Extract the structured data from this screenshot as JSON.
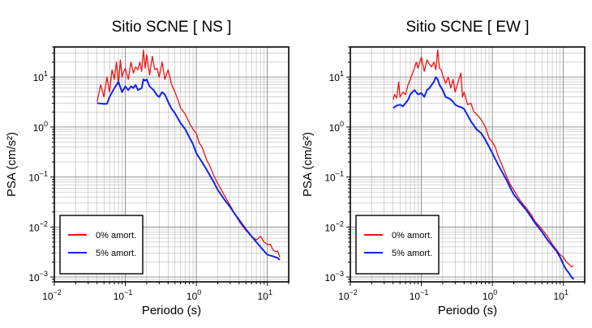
{
  "chart_data": [
    {
      "type": "line",
      "title": "Sitio SCNE [ NS ]",
      "xlabel": "Periodo (s)",
      "ylabel": "PSA (cm/s²)",
      "xscale": "log",
      "yscale": "log",
      "xlim": [
        0.01,
        20
      ],
      "ylim": [
        0.0008,
        40
      ],
      "grid": true,
      "legend_position": "bottom-left",
      "x_ticks": [
        {
          "value": 0.01,
          "base": "10",
          "exp": "−2"
        },
        {
          "value": 0.1,
          "base": "10",
          "exp": "−1"
        },
        {
          "value": 1,
          "base": "10",
          "exp": "0"
        },
        {
          "value": 10,
          "base": "10",
          "exp": "1"
        }
      ],
      "y_ticks": [
        {
          "value": 0.001,
          "base": "10",
          "exp": "−3"
        },
        {
          "value": 0.01,
          "base": "10",
          "exp": "−2"
        },
        {
          "value": 0.1,
          "base": "10",
          "exp": "−1"
        },
        {
          "value": 1,
          "base": "10",
          "exp": "0"
        },
        {
          "value": 10,
          "base": "10",
          "exp": "1"
        }
      ],
      "series": [
        {
          "name": "0% amort.",
          "color": "#ee1111",
          "x": [
            0.04,
            0.045,
            0.05,
            0.055,
            0.06,
            0.065,
            0.07,
            0.075,
            0.08,
            0.085,
            0.09,
            0.095,
            0.1,
            0.11,
            0.12,
            0.13,
            0.14,
            0.15,
            0.16,
            0.17,
            0.18,
            0.19,
            0.2,
            0.22,
            0.24,
            0.26,
            0.28,
            0.3,
            0.33,
            0.36,
            0.4,
            0.45,
            0.5,
            0.55,
            0.6,
            0.7,
            0.8,
            0.9,
            1.0,
            1.1,
            1.2,
            1.4,
            1.6,
            1.8,
            2.0,
            2.5,
            3.0,
            3.5,
            4.0,
            5.0,
            6.0,
            7.0,
            8.0,
            9.0,
            10.0,
            11.0,
            12.0,
            13.0,
            14.0,
            15.0
          ],
          "y": [
            3.2,
            7.0,
            4.0,
            10.0,
            5.0,
            14.0,
            9.0,
            20.0,
            7.0,
            22.0,
            10.0,
            13.0,
            15.0,
            9.0,
            20.0,
            12.0,
            16.0,
            14.0,
            20.0,
            13.0,
            35.0,
            15.0,
            28.0,
            11.0,
            26.0,
            14.0,
            15.0,
            10.0,
            20.0,
            9.0,
            14.0,
            7.0,
            5.0,
            3.5,
            2.4,
            1.8,
            1.2,
            0.9,
            0.75,
            0.48,
            0.4,
            0.22,
            0.15,
            0.1,
            0.075,
            0.042,
            0.027,
            0.018,
            0.013,
            0.0085,
            0.0065,
            0.0055,
            0.0065,
            0.005,
            0.0045,
            0.0045,
            0.0035,
            0.0032,
            0.0033,
            0.0025
          ]
        },
        {
          "name": "5% amort.",
          "color": "#1122ee",
          "x": [
            0.04,
            0.05,
            0.055,
            0.06,
            0.07,
            0.08,
            0.09,
            0.1,
            0.11,
            0.12,
            0.13,
            0.14,
            0.15,
            0.17,
            0.18,
            0.19,
            0.2,
            0.22,
            0.25,
            0.28,
            0.3,
            0.33,
            0.36,
            0.4,
            0.45,
            0.5,
            0.6,
            0.7,
            0.8,
            0.9,
            1.0,
            1.2,
            1.4,
            1.6,
            1.8,
            2.0,
            2.5,
            3.0,
            3.5,
            4.0,
            5.0,
            6.0,
            7.0,
            8.0,
            9.0,
            10.0,
            12.0,
            14.0,
            15.0
          ],
          "y": [
            3.0,
            2.9,
            2.9,
            4.0,
            6.0,
            8.0,
            5.0,
            6.5,
            5.5,
            6.5,
            6.0,
            7.0,
            5.5,
            6.0,
            9.0,
            8.5,
            9.0,
            6.5,
            5.5,
            4.3,
            4.0,
            5.0,
            4.5,
            3.2,
            2.3,
            1.9,
            1.2,
            0.9,
            0.62,
            0.45,
            0.3,
            0.2,
            0.14,
            0.1,
            0.075,
            0.055,
            0.035,
            0.025,
            0.018,
            0.014,
            0.009,
            0.0065,
            0.005,
            0.004,
            0.0033,
            0.0028,
            0.0026,
            0.0024,
            0.0022
          ]
        }
      ]
    },
    {
      "type": "line",
      "title": "Sitio SCNE [ EW ]",
      "xlabel": "Periodo (s)",
      "ylabel": "PSA (cm/s²)",
      "xscale": "log",
      "yscale": "log",
      "xlim": [
        0.01,
        20
      ],
      "ylim": [
        0.0008,
        40
      ],
      "grid": true,
      "legend_position": "bottom-left",
      "x_ticks": [
        {
          "value": 0.01,
          "base": "10",
          "exp": "−2"
        },
        {
          "value": 0.1,
          "base": "10",
          "exp": "−1"
        },
        {
          "value": 1,
          "base": "10",
          "exp": "0"
        },
        {
          "value": 10,
          "base": "10",
          "exp": "1"
        }
      ],
      "y_ticks": [
        {
          "value": 0.001,
          "base": "10",
          "exp": "−3"
        },
        {
          "value": 0.01,
          "base": "10",
          "exp": "−2"
        },
        {
          "value": 0.1,
          "base": "10",
          "exp": "−1"
        },
        {
          "value": 1,
          "base": "10",
          "exp": "0"
        },
        {
          "value": 10,
          "base": "10",
          "exp": "1"
        }
      ],
      "series": [
        {
          "name": "0% amort.",
          "color": "#ee1111",
          "x": [
            0.04,
            0.042,
            0.045,
            0.048,
            0.05,
            0.055,
            0.06,
            0.065,
            0.07,
            0.075,
            0.08,
            0.085,
            0.09,
            0.1,
            0.11,
            0.12,
            0.13,
            0.14,
            0.15,
            0.16,
            0.17,
            0.18,
            0.19,
            0.2,
            0.22,
            0.24,
            0.26,
            0.28,
            0.3,
            0.33,
            0.36,
            0.38,
            0.4,
            0.45,
            0.5,
            0.55,
            0.6,
            0.7,
            0.8,
            0.9,
            1.0,
            1.1,
            1.2,
            1.4,
            1.6,
            1.8,
            2.0,
            2.5,
            3.0,
            3.5,
            4.0,
            5.0,
            6.0,
            7.0,
            8.0,
            9.0,
            10.0,
            11.0,
            12.0,
            13.0,
            14.0
          ],
          "y": [
            3.5,
            4.5,
            3.8,
            8.0,
            4.0,
            5.0,
            4.5,
            7.0,
            9.0,
            12.0,
            15.0,
            20.0,
            15.0,
            25.0,
            13.0,
            22.0,
            18.0,
            16.0,
            20.0,
            14.0,
            35.0,
            15.0,
            14.0,
            11.0,
            7.5,
            10.0,
            6.0,
            9.0,
            5.0,
            8.0,
            12.0,
            4.0,
            5.0,
            2.8,
            3.0,
            2.0,
            1.8,
            1.4,
            1.0,
            0.6,
            0.5,
            0.4,
            0.27,
            0.16,
            0.1,
            0.07,
            0.055,
            0.033,
            0.024,
            0.018,
            0.013,
            0.009,
            0.0065,
            0.0045,
            0.0035,
            0.0028,
            0.0025,
            0.002,
            0.0018,
            0.0016,
            0.0017
          ]
        },
        {
          "name": "5% amort.",
          "color": "#1122ee",
          "x": [
            0.04,
            0.045,
            0.05,
            0.055,
            0.06,
            0.065,
            0.07,
            0.075,
            0.08,
            0.09,
            0.1,
            0.11,
            0.12,
            0.13,
            0.14,
            0.15,
            0.16,
            0.17,
            0.18,
            0.2,
            0.22,
            0.25,
            0.28,
            0.3,
            0.33,
            0.36,
            0.4,
            0.45,
            0.5,
            0.6,
            0.7,
            0.8,
            0.9,
            1.0,
            1.2,
            1.4,
            1.6,
            1.8,
            2.0,
            2.5,
            3.0,
            3.5,
            4.0,
            5.0,
            6.0,
            7.0,
            8.0,
            9.0,
            10.0,
            11.0,
            12.0,
            13.0,
            14.0
          ],
          "y": [
            2.4,
            2.7,
            2.8,
            2.6,
            3.0,
            3.5,
            4.5,
            5.0,
            5.5,
            4.5,
            4.8,
            4.0,
            5.5,
            6.0,
            7.0,
            8.0,
            10.0,
            9.0,
            7.0,
            5.5,
            4.0,
            3.7,
            3.2,
            2.8,
            2.6,
            2.5,
            2.3,
            1.7,
            1.3,
            0.9,
            0.75,
            0.55,
            0.4,
            0.3,
            0.18,
            0.12,
            0.085,
            0.06,
            0.045,
            0.03,
            0.022,
            0.016,
            0.012,
            0.008,
            0.0055,
            0.0042,
            0.0033,
            0.0025,
            0.0018,
            0.0014,
            0.0012,
            0.001,
            0.0009
          ]
        }
      ]
    }
  ]
}
